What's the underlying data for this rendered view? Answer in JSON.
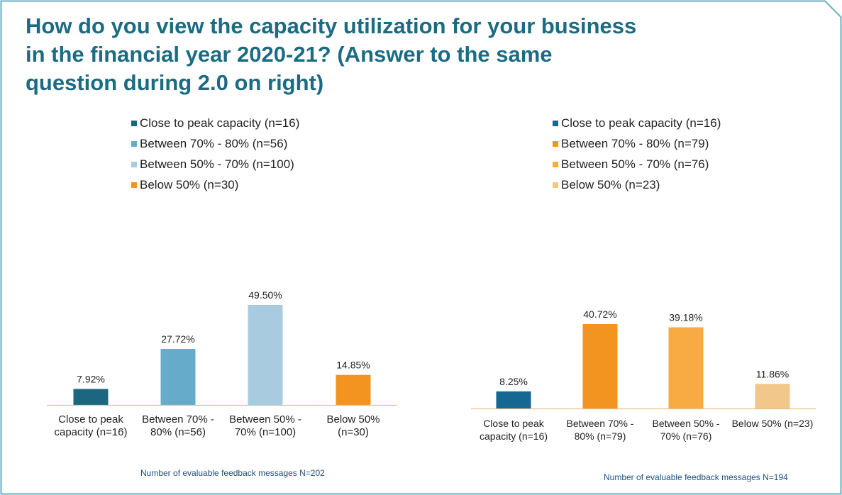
{
  "title": {
    "line1": "How do you view the capacity utilization for your business",
    "line2": "in the financial year 2020-21?  (Answer to the same",
    "line3": "question during 2.0 on right)"
  },
  "colors": {
    "title": "#1b6b82",
    "frame": "#6aaec6",
    "axis": "#e8c08a"
  },
  "left": {
    "note": "Number of evaluable feedback messages N=202",
    "legend": [
      {
        "label": "Close to peak capacity (n=16)",
        "color": "#1d6680"
      },
      {
        "label": "Between 70% - 80% (n=56)",
        "color": "#66abc9"
      },
      {
        "label": "Between 50% - 70% (n=100)",
        "color": "#a8cbe0"
      },
      {
        "label": "Below 50% (n=30)",
        "color": "#f39320"
      }
    ]
  },
  "right": {
    "note": "Number of evaluable feedback messages N=194",
    "legend": [
      {
        "label": "Close to peak capacity (n=16)",
        "color": "#156894"
      },
      {
        "label": "Between 70% - 80% (n=79)",
        "color": "#f39320"
      },
      {
        "label": "Between 50% - 70% (n=76)",
        "color": "#f8ab43"
      },
      {
        "label": "Below 50% (n=23)",
        "color": "#f1c78a"
      }
    ]
  },
  "chart_data": [
    {
      "type": "bar",
      "categories": [
        [
          "Close to peak",
          "capacity (n=16)"
        ],
        [
          "Between 70% -",
          "80% (n=56)"
        ],
        [
          "Between 50% -",
          "70% (n=100)"
        ],
        [
          "Below 50%",
          "(n=30)"
        ]
      ],
      "values": [
        7.92,
        27.72,
        49.5,
        14.85
      ],
      "value_labels": [
        "7.92%",
        "27.72%",
        "49.50%",
        "14.85%"
      ],
      "colors": [
        "#1d6680",
        "#66abc9",
        "#a8cbe0",
        "#f39320"
      ],
      "ylim": [
        0,
        50
      ],
      "grid": false
    },
    {
      "type": "bar",
      "categories": [
        [
          "Close to peak",
          "capacity (n=16)"
        ],
        [
          "Between 70% -",
          "80% (n=79)"
        ],
        [
          "Between 50% -",
          "70% (n=76)"
        ],
        [
          "Below 50% (n=23)"
        ]
      ],
      "values": [
        8.25,
        40.72,
        39.18,
        11.86
      ],
      "value_labels": [
        "8.25%",
        "40.72%",
        "39.18%",
        "11.86%"
      ],
      "colors": [
        "#156894",
        "#f39320",
        "#f8ab43",
        "#f1c78a"
      ],
      "ylim": [
        0,
        50
      ],
      "grid": false
    }
  ]
}
